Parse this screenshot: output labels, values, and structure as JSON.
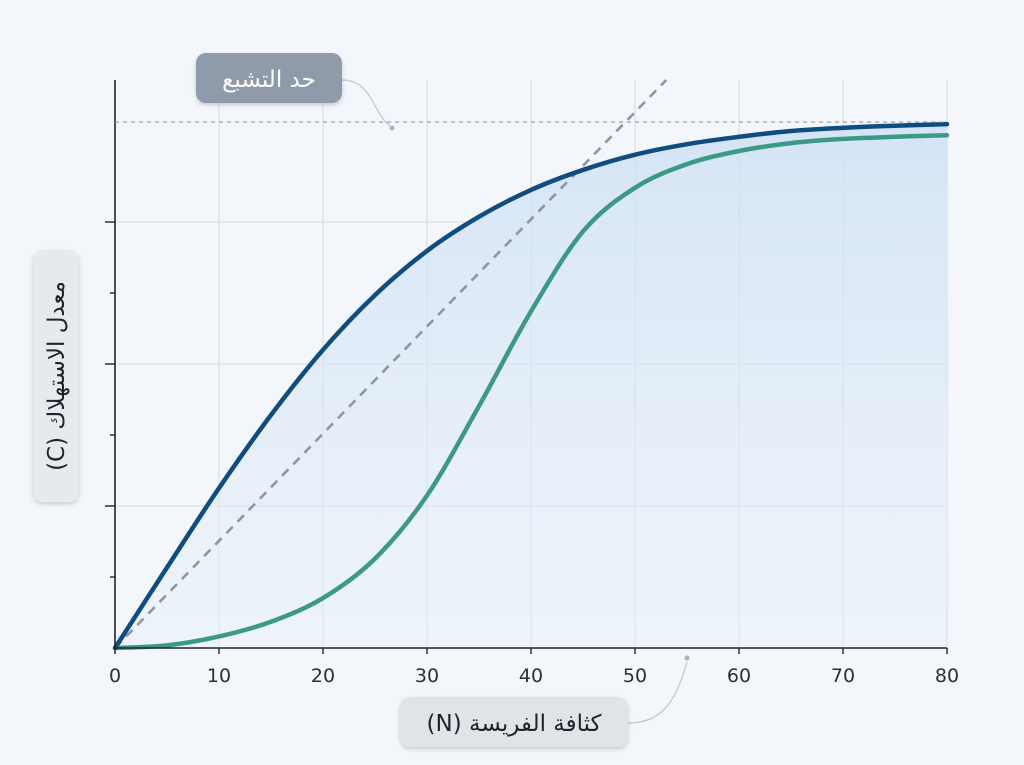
{
  "chart_data": {
    "type": "line",
    "xlabel": "كثافة الفريسة (N)",
    "ylabel": "معدل الاستهلاك (C)",
    "xlim": [
      0,
      80
    ],
    "ylim": [
      0,
      1.08
    ],
    "x_ticks": [
      0,
      10,
      20,
      30,
      40,
      50,
      60,
      70,
      80
    ],
    "grid": true,
    "annotations": [
      {
        "text": "حد التشبع",
        "y": 1.0
      }
    ],
    "saturation_level": 1.0,
    "colors": {
      "type_ii": "#0f4c81",
      "type_iii": "#3a9a86",
      "linear": "#8e96a3",
      "fill": "#cfe1f5",
      "label_pill": "#8f9bab",
      "ylabel_pill": "#e6e9ed",
      "xlabel_pill": "#e0e4e9"
    },
    "series": [
      {
        "x": [
          0,
          5,
          10,
          15,
          20,
          25,
          30,
          35,
          40,
          45,
          50,
          55,
          60,
          65,
          70,
          75,
          80
        ],
        "y": [
          0.0,
          0.153,
          0.304,
          0.443,
          0.567,
          0.671,
          0.755,
          0.82,
          0.871,
          0.909,
          0.938,
          0.958,
          0.972,
          0.983,
          0.989,
          0.993,
          0.996
        ],
        "style": "solid"
      },
      {
        "x": [
          0,
          5,
          10,
          15,
          20,
          25,
          30,
          35,
          40,
          45,
          50,
          55,
          60,
          65,
          70,
          75,
          80
        ],
        "y": [
          0.0,
          0.005,
          0.022,
          0.05,
          0.095,
          0.17,
          0.29,
          0.46,
          0.64,
          0.792,
          0.875,
          0.92,
          0.945,
          0.96,
          0.968,
          0.972,
          0.975
        ],
        "style": "solid"
      },
      {
        "x": [
          0,
          53
        ],
        "y": [
          0.0,
          1.08
        ],
        "style": "dashed"
      }
    ]
  }
}
